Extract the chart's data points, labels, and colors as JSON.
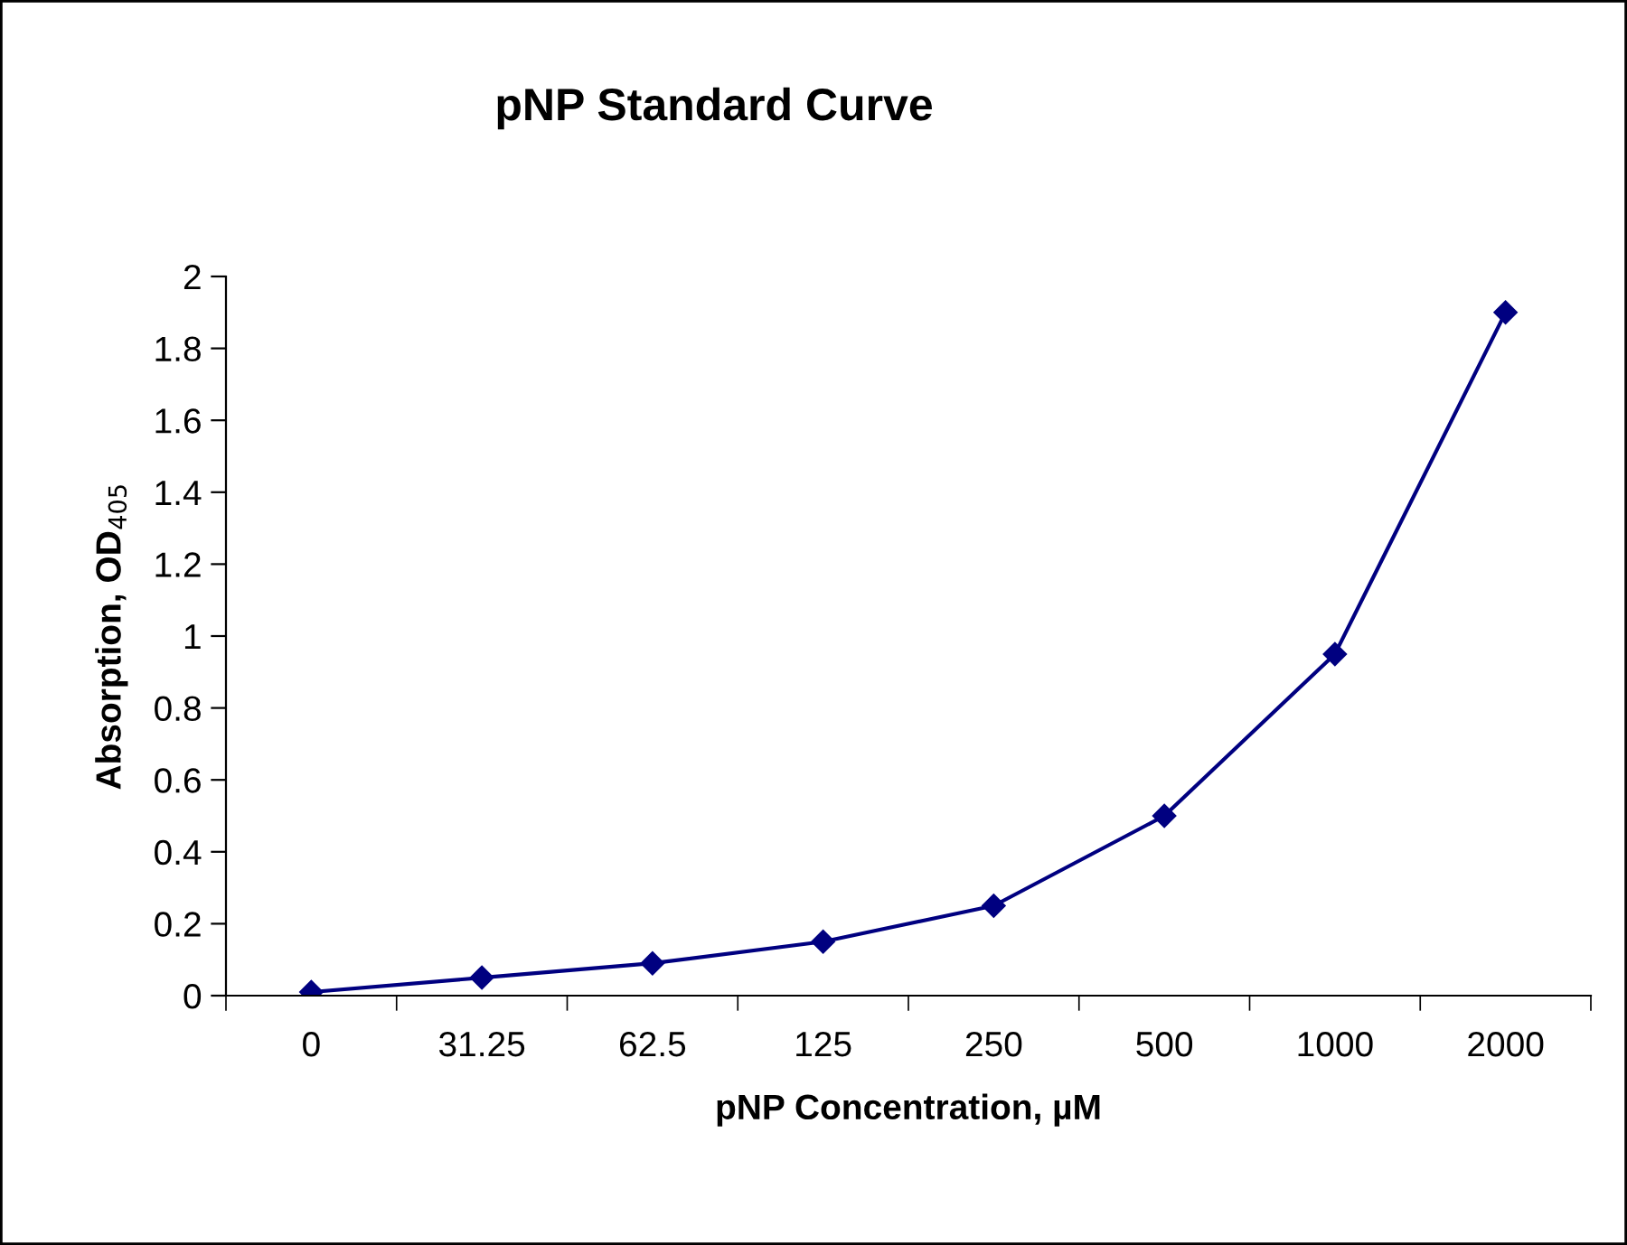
{
  "chart_data": {
    "type": "line",
    "title": "pNP Standard Curve",
    "xlabel": "pNP Concentration, µM",
    "ylabel": "Absorption, OD$_{405}$",
    "categories": [
      "0",
      "31.25",
      "62.5",
      "125",
      "250",
      "500",
      "1000",
      "2000"
    ],
    "series": [
      {
        "color": "#000080",
        "values": [
          0.01,
          0.05,
          0.09,
          0.15,
          0.25,
          0.5,
          0.95,
          1.9
        ]
      }
    ],
    "ylim": [
      0,
      2
    ],
    "yticks": [
      0,
      0.2,
      0.4,
      0.6,
      0.8,
      1,
      1.2,
      1.4,
      1.6,
      1.8,
      2
    ],
    "marker": "diamond",
    "line_style": "solid",
    "grid": false,
    "legend": false
  }
}
